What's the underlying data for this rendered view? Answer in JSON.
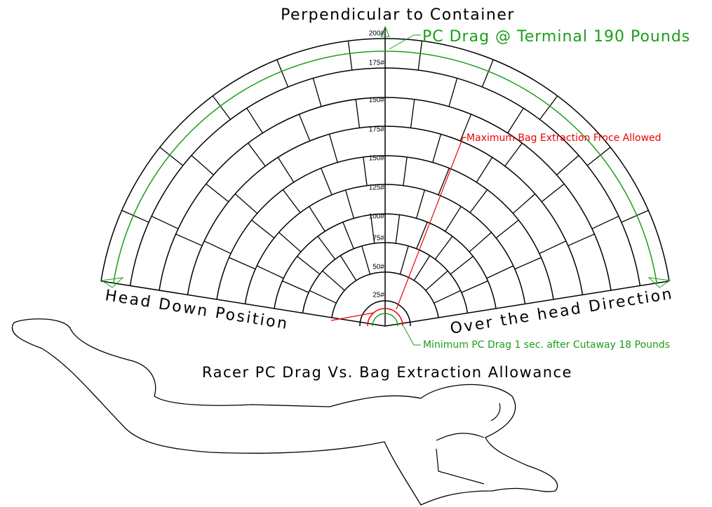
{
  "title": "Perpendicular to Container",
  "pc_drag_label": "PC Drag @ Terminal 190 Pounds",
  "max_bag_label": "Maximum Bag Extraction Froce Allowed",
  "ring_labels": [
    "200#",
    "175#",
    "150#",
    "175#",
    "150#",
    "125#",
    "100#",
    "75#",
    "50#",
    "25#"
  ],
  "left_label": "Head Down Position",
  "right_label": "Over the head Direction",
  "min_pc_label": "Minimum PC Drag 1 sec. after Cutaway 18 Pounds",
  "caption": "Racer PC Drag Vs. Bag Extraction Allowance"
}
